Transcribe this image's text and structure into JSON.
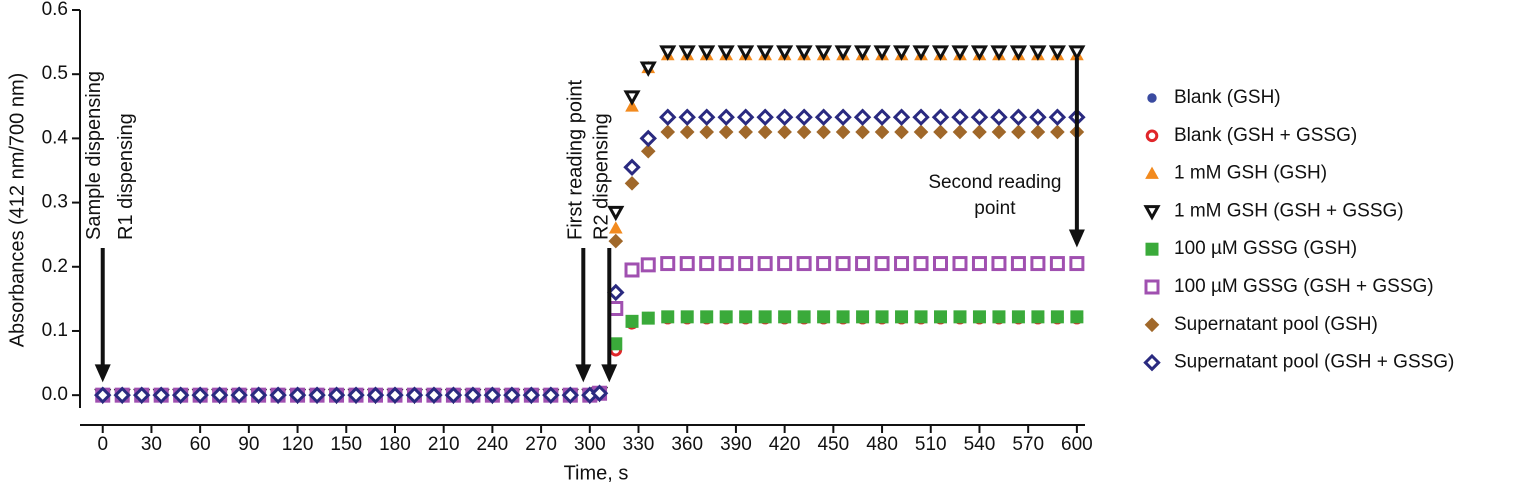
{
  "chart_data": {
    "type": "scatter",
    "x_label": "Time, s",
    "y_label": "Absorbances (412 nm/700 nm)",
    "xlim": [
      -14,
      605
    ],
    "ylim": [
      -0.02,
      0.6
    ],
    "xticks": [
      0,
      30,
      60,
      90,
      120,
      150,
      180,
      210,
      240,
      270,
      300,
      330,
      360,
      390,
      420,
      450,
      480,
      510,
      540,
      570,
      600
    ],
    "yticks": [
      {
        "value": 0,
        "label": "0.0"
      },
      0.1,
      0.2,
      0.3,
      0.4,
      0.5,
      0.6
    ],
    "x": [
      0,
      12,
      24,
      36,
      48,
      60,
      72,
      84,
      96,
      108,
      120,
      132,
      144,
      156,
      168,
      180,
      192,
      204,
      216,
      228,
      240,
      252,
      264,
      276,
      288,
      300,
      306,
      316,
      326,
      336,
      348,
      360,
      372,
      384,
      396,
      408,
      420,
      432,
      444,
      456,
      468,
      480,
      492,
      504,
      516,
      528,
      540,
      552,
      564,
      576,
      588,
      600
    ],
    "series": [
      {
        "name": "Blank (GSH)",
        "color": "#3a4ba0",
        "marker": "circle",
        "filled": true,
        "values": [
          0,
          0,
          0,
          0,
          0,
          0,
          0,
          0,
          0,
          0,
          0,
          0,
          0,
          0,
          0,
          0,
          0,
          0,
          0,
          0,
          0,
          0,
          0,
          0,
          0,
          0,
          0.002,
          0.075,
          0.115,
          0.122,
          0.122,
          0.122,
          0.122,
          0.122,
          0.122,
          0.122,
          0.122,
          0.122,
          0.122,
          0.122,
          0.122,
          0.122,
          0.122,
          0.122,
          0.122,
          0.122,
          0.122,
          0.122,
          0.122,
          0.122,
          0.122,
          0.122
        ]
      },
      {
        "name": "Blank (GSH + GSSG)",
        "color": "#e0262a",
        "marker": "circle",
        "filled": false,
        "values": [
          0,
          0,
          0,
          0,
          0,
          0,
          0,
          0,
          0,
          0,
          0,
          0,
          0,
          0,
          0,
          0,
          0,
          0,
          0,
          0,
          0,
          0,
          0,
          0,
          0,
          0,
          0.002,
          0.07,
          0.112,
          0.12,
          0.12,
          0.12,
          0.12,
          0.12,
          0.12,
          0.12,
          0.12,
          0.12,
          0.12,
          0.12,
          0.12,
          0.12,
          0.12,
          0.12,
          0.12,
          0.12,
          0.12,
          0.12,
          0.12,
          0.12,
          0.12,
          0.12
        ]
      },
      {
        "name": "1 mM GSH (GSH)",
        "color": "#f28a1e",
        "marker": "triangle",
        "filled": true,
        "values": [
          0,
          0,
          0,
          0,
          0,
          0,
          0,
          0,
          0,
          0,
          0,
          0,
          0,
          0,
          0,
          0,
          0,
          0,
          0,
          0,
          0,
          0,
          0,
          0,
          0,
          0,
          0.003,
          0.26,
          0.45,
          0.51,
          0.53,
          0.53,
          0.53,
          0.53,
          0.53,
          0.53,
          0.53,
          0.53,
          0.53,
          0.53,
          0.53,
          0.53,
          0.53,
          0.53,
          0.53,
          0.53,
          0.53,
          0.53,
          0.53,
          0.53,
          0.53,
          0.53
        ]
      },
      {
        "name": "1 mM GSH (GSH + GSSG)",
        "color": "#111111",
        "marker": "triangle-down",
        "filled": false,
        "values": [
          0,
          0,
          0,
          0,
          0,
          0,
          0,
          0,
          0,
          0,
          0,
          0,
          0,
          0,
          0,
          0,
          0,
          0,
          0,
          0,
          0,
          0,
          0,
          0,
          0,
          0,
          0.003,
          0.285,
          0.465,
          0.51,
          0.535,
          0.535,
          0.535,
          0.535,
          0.535,
          0.535,
          0.535,
          0.535,
          0.535,
          0.535,
          0.535,
          0.535,
          0.535,
          0.535,
          0.535,
          0.535,
          0.535,
          0.535,
          0.535,
          0.535,
          0.535,
          0.535
        ]
      },
      {
        "name": "100 µM GSSG (GSH)",
        "color": "#3aaa3a",
        "marker": "square",
        "filled": true,
        "values": [
          0,
          0,
          0,
          0,
          0,
          0,
          0,
          0,
          0,
          0,
          0,
          0,
          0,
          0,
          0,
          0,
          0,
          0,
          0,
          0,
          0,
          0,
          0,
          0,
          0,
          0,
          0.002,
          0.08,
          0.115,
          0.12,
          0.122,
          0.122,
          0.122,
          0.122,
          0.122,
          0.122,
          0.122,
          0.122,
          0.122,
          0.122,
          0.122,
          0.122,
          0.122,
          0.122,
          0.122,
          0.122,
          0.122,
          0.122,
          0.122,
          0.122,
          0.122,
          0.122
        ]
      },
      {
        "name": "100 µM GSSG (GSH + GSSG)",
        "color": "#a050b0",
        "marker": "square",
        "filled": false,
        "values": [
          0,
          0,
          0,
          0,
          0,
          0,
          0,
          0,
          0,
          0,
          0,
          0,
          0,
          0,
          0,
          0,
          0,
          0,
          0,
          0,
          0,
          0,
          0,
          0,
          0,
          0,
          0.003,
          0.135,
          0.195,
          0.203,
          0.205,
          0.205,
          0.205,
          0.205,
          0.205,
          0.205,
          0.205,
          0.205,
          0.205,
          0.205,
          0.205,
          0.205,
          0.205,
          0.205,
          0.205,
          0.205,
          0.205,
          0.205,
          0.205,
          0.205,
          0.205,
          0.205
        ]
      },
      {
        "name": "Supernatant pool (GSH)",
        "color": "#a0682a",
        "marker": "diamond",
        "filled": true,
        "values": [
          0,
          0,
          0,
          0,
          0,
          0,
          0,
          0,
          0,
          0,
          0,
          0,
          0,
          0,
          0,
          0,
          0,
          0,
          0,
          0,
          0,
          0,
          0,
          0,
          0,
          0,
          0.003,
          0.24,
          0.33,
          0.38,
          0.41,
          0.41,
          0.41,
          0.41,
          0.41,
          0.41,
          0.41,
          0.41,
          0.41,
          0.41,
          0.41,
          0.41,
          0.41,
          0.41,
          0.41,
          0.41,
          0.41,
          0.41,
          0.41,
          0.41,
          0.41,
          0.41
        ]
      },
      {
        "name": "Supernatant pool (GSH + GSSG)",
        "color": "#2a2a80",
        "marker": "diamond",
        "filled": false,
        "values": [
          0,
          0,
          0,
          0,
          0,
          0,
          0,
          0,
          0,
          0,
          0,
          0,
          0,
          0,
          0,
          0,
          0,
          0,
          0,
          0,
          0,
          0,
          0,
          0,
          0,
          0,
          0.003,
          0.16,
          0.355,
          0.4,
          0.433,
          0.433,
          0.433,
          0.433,
          0.433,
          0.433,
          0.433,
          0.433,
          0.433,
          0.433,
          0.433,
          0.433,
          0.433,
          0.433,
          0.433,
          0.433,
          0.433,
          0.433,
          0.433,
          0.433,
          0.433,
          0.433
        ]
      }
    ],
    "annotations": [
      {
        "lines": [
          "Sample dispensing",
          "R1 dispensing"
        ],
        "x": 0,
        "y": 0.02,
        "orientation": "vertical"
      },
      {
        "lines": [
          "First reading point"
        ],
        "x": 296,
        "y": 0.02,
        "orientation": "vertical"
      },
      {
        "lines": [
          "R2 dispensing"
        ],
        "x": 312,
        "y": 0.02,
        "orientation": "vertical"
      },
      {
        "lines": [
          "Second reading",
          "point"
        ],
        "x": 600,
        "y": 0.23,
        "orientation": "horizontal"
      }
    ]
  }
}
